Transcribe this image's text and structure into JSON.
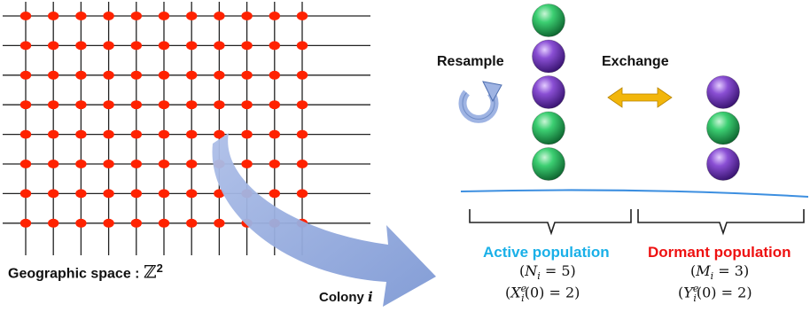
{
  "labels": {
    "geographic_space": "Geographic space :",
    "geographic_space_symbol": "ℤ",
    "geographic_space_exp": "2",
    "colony": "Colony",
    "colony_index": "i",
    "resample": "Resample",
    "exchange": "Exchange",
    "active_population": "Active population",
    "dormant_population": "Dormant population",
    "active_size_var": "N",
    "active_size_sub": "i",
    "active_size_val": "5",
    "active_count_var": "X",
    "active_count_sup": "e",
    "active_count_sub": "i",
    "active_count_val": "2",
    "dormant_size_var": "M",
    "dormant_size_sub": "i",
    "dormant_size_val": "3",
    "dormant_count_var": "Y",
    "dormant_count_sup": "e",
    "dormant_count_sub": "i",
    "dormant_count_val": "2",
    "time_arg": "0"
  },
  "active_balls": [
    "green",
    "purple",
    "purple",
    "green",
    "green"
  ],
  "dormant_balls": [
    "purple",
    "green",
    "purple"
  ],
  "grid": {
    "rows": 8,
    "cols": 11
  },
  "colors": {
    "node": "#ff2200",
    "grid_line": "#222222",
    "arrow": "#8fa9dc",
    "exchange_arrow": "#f2b60b",
    "separator": "#3d8fe0",
    "active_label": "#1ab0e8",
    "dormant_label": "#ee1111",
    "green_ball": "#17a84e",
    "purple_ball": "#6a2fb0"
  }
}
